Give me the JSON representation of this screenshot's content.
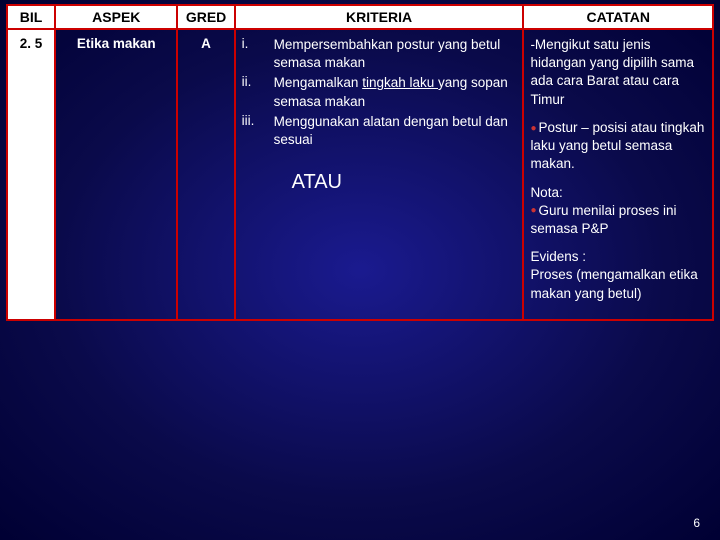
{
  "headers": {
    "bil": "BIL",
    "aspek": "ASPEK",
    "gred": "GRED",
    "kriteria": "KRITERIA",
    "catatan": "CATATAN"
  },
  "row": {
    "bil": "2. 5",
    "aspek": "Etika makan",
    "gred": "A",
    "kriteria": {
      "i_num": "i.",
      "i_text": "Mempersembahkan postur yang betul semasa makan",
      "ii_num": "ii.",
      "ii_text_a": "Mengamalkan ",
      "ii_text_u": "tingkah laku ",
      "ii_text_b": "yang sopan semasa makan",
      "iii_num": "iii.",
      "iii_text": "Menggunakan alatan dengan betul dan sesuai",
      "atau": "ATAU"
    },
    "catatan": {
      "p1": "-Mengikut satu jenis hidangan yang dipilih sama ada cara Barat atau cara Timur",
      "p2": "Postur – posisi atau tingkah laku yang betul semasa makan.",
      "nota_label": "Nota:",
      "nota_text": "Guru menilai proses ini semasa P&P",
      "evidens_label": "Evidens :",
      "evidens_text": "Proses (mengamalkan etika makan yang betul)"
    }
  },
  "pagenum": "6",
  "colors": {
    "border": "#cc0000",
    "bullet": "#cc3333",
    "header_bg": "#ffffff",
    "header_fg": "#000000",
    "body_fg": "#ffffff"
  }
}
